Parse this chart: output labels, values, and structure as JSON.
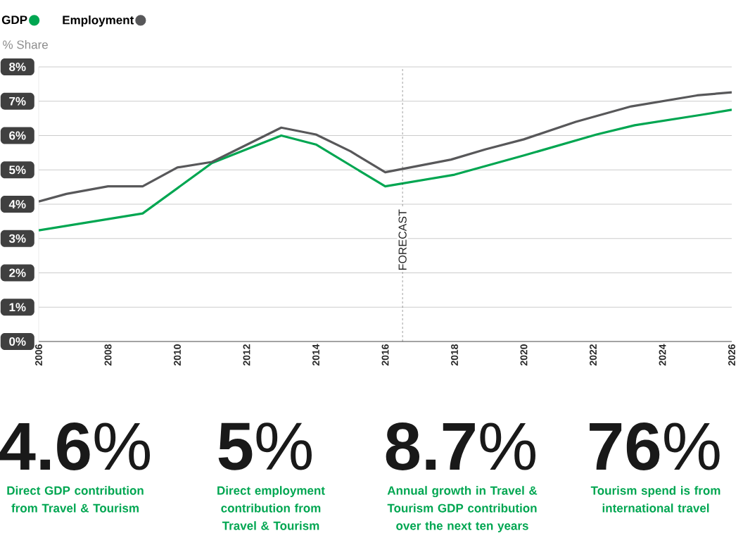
{
  "chart_data": {
    "type": "line",
    "ylabel": "% Share",
    "xlim": [
      2006,
      2026
    ],
    "xticks": [
      2006,
      2008,
      2010,
      2012,
      2014,
      2016,
      2018,
      2020,
      2022,
      2024,
      2026
    ],
    "ylim": [
      0,
      8
    ],
    "yticks": [
      {
        "value": 0,
        "label": "0%"
      },
      {
        "value": 1,
        "label": "1%"
      },
      {
        "value": 2,
        "label": "2%"
      },
      {
        "value": 3,
        "label": "3%"
      },
      {
        "value": 4,
        "label": "4%"
      },
      {
        "value": 5,
        "label": "5%"
      },
      {
        "value": 6,
        "label": "6%"
      },
      {
        "value": 7,
        "label": "7%"
      },
      {
        "value": 8,
        "label": "8%"
      }
    ],
    "grid": "y",
    "legend": "top left",
    "series": [
      {
        "name": "GDP",
        "color": "#00a651",
        "x": [
          2006,
          2009,
          2011,
          2013,
          2014,
          2016,
          2018,
          2020,
          2022.1,
          2023.2,
          2025.1,
          2026
        ],
        "values": [
          3.24,
          3.73,
          5.2,
          6.0,
          5.74,
          4.52,
          4.86,
          5.42,
          6.03,
          6.3,
          6.6,
          6.75
        ]
      },
      {
        "name": "Employment",
        "color": "#58585a",
        "x": [
          2006,
          2006.8,
          2008,
          2009,
          2010,
          2011,
          2013,
          2014,
          2015,
          2016,
          2017.9,
          2018.9,
          2020,
          2021.5,
          2023.1,
          2025,
          2026
        ],
        "values": [
          4.08,
          4.3,
          4.52,
          4.52,
          5.07,
          5.23,
          6.23,
          6.03,
          5.54,
          4.93,
          5.3,
          5.6,
          5.89,
          6.4,
          6.85,
          7.17,
          7.26
        ]
      }
    ],
    "ref_lines": [
      {
        "axis": "x",
        "value": 2016.5,
        "label": "FORECAST",
        "color": "#000000",
        "line_style": "dashed"
      }
    ],
    "annotations": [
      "**4.6**%",
      "Direct GDP contribution from Travel & Tourism",
      "**5**%",
      "Direct employment contribution from Travel & Tourism",
      "**8.7**%",
      "Annual growth in Travel & Tourism GDP contribution over the next ten years",
      "**76**%",
      "Tourism spend is from international travel"
    ]
  }
}
